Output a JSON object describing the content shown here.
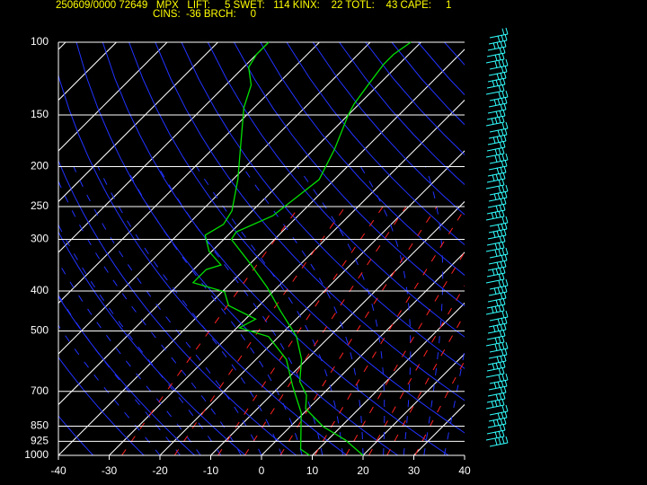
{
  "header": {
    "line1": "250609/0000 72649   MPX   LIFT:     5 SWET:   114 KINX:    22 TOTL:    43 CAPE:     1",
    "line2": "CINS:  -36 BRCH:     0"
  },
  "chart_data": {
    "type": "skewt",
    "xlim": [
      -40,
      40
    ],
    "xticks": [
      -40,
      -30,
      -20,
      -10,
      0,
      10,
      20,
      30,
      40
    ],
    "ylim": [
      1000,
      100
    ],
    "yticks": [
      100,
      150,
      200,
      250,
      300,
      400,
      500,
      700,
      850,
      925,
      1000
    ],
    "log_y": true,
    "grid": true,
    "series": [
      {
        "color": "#00e000",
        "y": [
          100,
          107,
          113,
          127,
          141,
          150,
          181,
          215,
          238,
          263,
          288,
          300,
          338,
          392,
          445,
          516,
          586,
          663,
          715,
          771,
          852,
          918,
          1000
        ],
        "values": [
          -52,
          -53,
          -53,
          -52,
          -51,
          -50,
          -46,
          -43,
          -44,
          -45,
          -49,
          -48.5,
          -41,
          -32,
          -25,
          -16.5,
          -11,
          -7,
          -3,
          -0.5,
          6.5,
          13.5,
          20
        ]
      },
      {
        "color": "#00e000",
        "y": [
          100,
          107,
          115,
          127,
          144,
          176,
          215,
          256,
          276,
          293,
          321,
          346,
          355,
          382,
          402,
          434,
          468,
          491,
          516,
          586,
          680,
          790,
          874,
          966,
          1000
        ],
        "values": [
          -80,
          -80,
          -79,
          -75,
          -72,
          -65.5,
          -59,
          -54,
          -53,
          -54.5,
          -50.5,
          -45.5,
          -47.5,
          -47.5,
          -39.5,
          -36,
          -28,
          -29.5,
          -22,
          -14,
          -7.5,
          -0.5,
          3,
          6.5,
          9.5
        ]
      }
    ]
  }
}
